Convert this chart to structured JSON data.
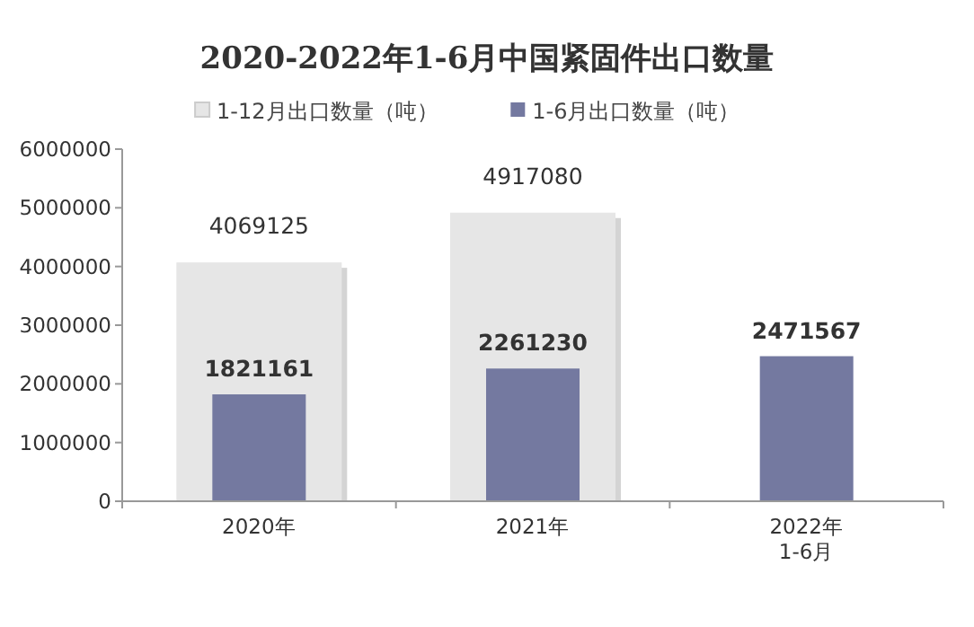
{
  "chart_data": {
    "type": "bar",
    "title": "2020-2022年1-6月中国紧固件出口数量",
    "categories": [
      "2020年",
      "2021年",
      "2022年\n1-6月"
    ],
    "series": [
      {
        "name": "1-12月出口数量（吨）",
        "color": "#e6e6e6",
        "values": [
          4069125,
          4917080,
          null
        ]
      },
      {
        "name": "1-6月出口数量（吨）",
        "color": "#7479a0",
        "values": [
          1821161,
          2261230,
          2471567
        ]
      }
    ],
    "ylim": [
      0,
      6000000
    ],
    "yticks": [
      0,
      1000000,
      2000000,
      3000000,
      4000000,
      5000000,
      6000000
    ],
    "data_labels": true,
    "legend": "top",
    "grid": false
  }
}
